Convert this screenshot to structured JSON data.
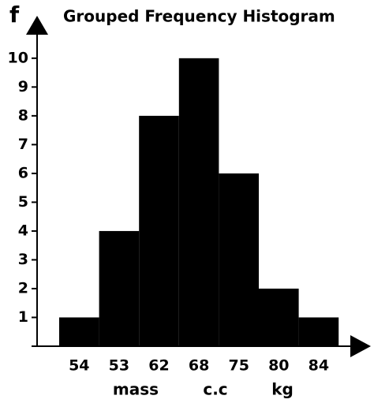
{
  "chart_data": {
    "type": "bar",
    "title": "Grouped Frequency Histogram",
    "ylabel": "f",
    "categories": [
      "54",
      "53",
      "62",
      "68",
      "75",
      "80",
      "84"
    ],
    "values": [
      1,
      4,
      8,
      10,
      6,
      2,
      1
    ],
    "color": "#000000",
    "xlabel": [
      "mass",
      "c.c",
      "kg"
    ],
    "ylim": [
      0,
      11.2
    ],
    "yticks": [
      1,
      2,
      3,
      4,
      5,
      6,
      7,
      8,
      9,
      10
    ]
  }
}
